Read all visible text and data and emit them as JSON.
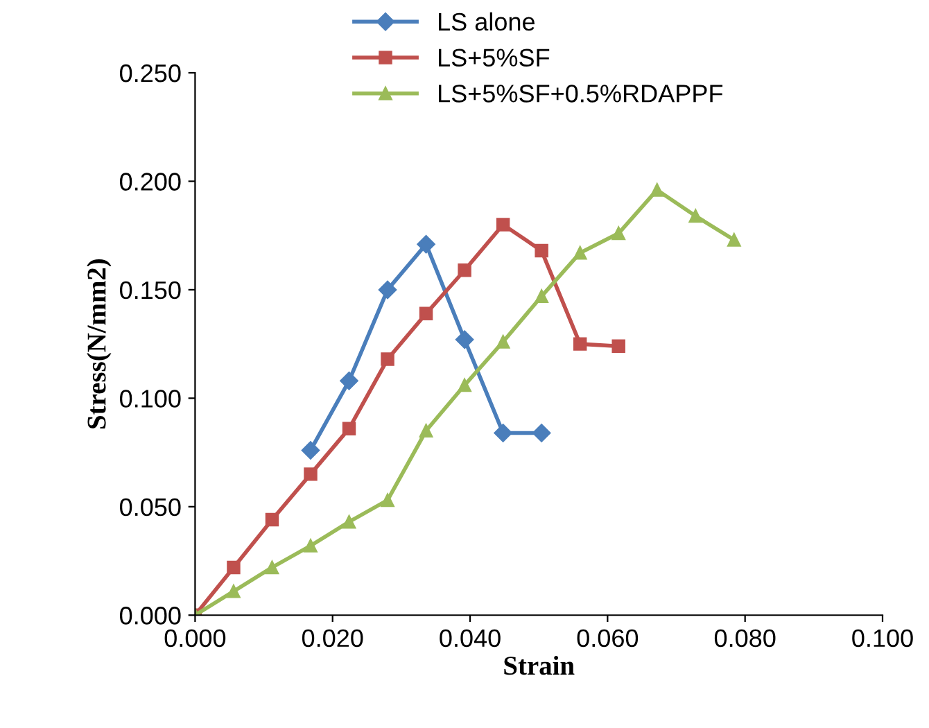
{
  "chart_data": {
    "type": "line",
    "xlabel": "Strain",
    "ylabel": "Stress(N/mm2)",
    "xlim": [
      0,
      0.1
    ],
    "ylim": [
      0,
      0.25
    ],
    "xticks": [
      {
        "value": 0,
        "label": "0.000"
      },
      {
        "value": 0.02,
        "label": "0.020"
      },
      {
        "value": 0.04,
        "label": "0.040"
      },
      {
        "value": 0.06,
        "label": "0.060"
      },
      {
        "value": 0.08,
        "label": "0.080"
      },
      {
        "value": 0.1,
        "label": "0.100"
      }
    ],
    "yticks": [
      {
        "value": 0,
        "label": "0.000"
      },
      {
        "value": 0.05,
        "label": "0.050"
      },
      {
        "value": 0.1,
        "label": "0.100"
      },
      {
        "value": 0.15,
        "label": "0.150"
      },
      {
        "value": 0.2,
        "label": "0.200"
      },
      {
        "value": 0.25,
        "label": "0.250"
      }
    ],
    "grid": false,
    "legend": "top",
    "series": [
      {
        "name": "LS alone",
        "color": "#4a7ebb",
        "marker": "diamond",
        "x": [
          0.0168,
          0.0224,
          0.028,
          0.0336,
          0.0392,
          0.0448,
          0.0504
        ],
        "values": [
          0.076,
          0.108,
          0.15,
          0.171,
          0.127,
          0.084,
          0.084
        ]
      },
      {
        "name": "LS+5%SF",
        "color": "#c0504d",
        "marker": "square",
        "x": [
          0,
          0.0056,
          0.0112,
          0.0168,
          0.0224,
          0.028,
          0.0336,
          0.0392,
          0.0448,
          0.0504,
          0.056,
          0.0616
        ],
        "values": [
          0,
          0.022,
          0.044,
          0.065,
          0.086,
          0.118,
          0.139,
          0.159,
          0.18,
          0.168,
          0.125,
          0.124
        ]
      },
      {
        "name": "LS+5%SF+0.5%RDAPPF",
        "color": "#9bbb59",
        "marker": "triangle",
        "x": [
          0,
          0.0056,
          0.0112,
          0.0168,
          0.0224,
          0.028,
          0.0336,
          0.0392,
          0.0448,
          0.0504,
          0.056,
          0.0616,
          0.0672,
          0.0728,
          0.0784
        ],
        "values": [
          0,
          0.011,
          0.022,
          0.032,
          0.043,
          0.053,
          0.085,
          0.106,
          0.126,
          0.147,
          0.167,
          0.176,
          0.196,
          0.184,
          0.173
        ]
      }
    ]
  }
}
